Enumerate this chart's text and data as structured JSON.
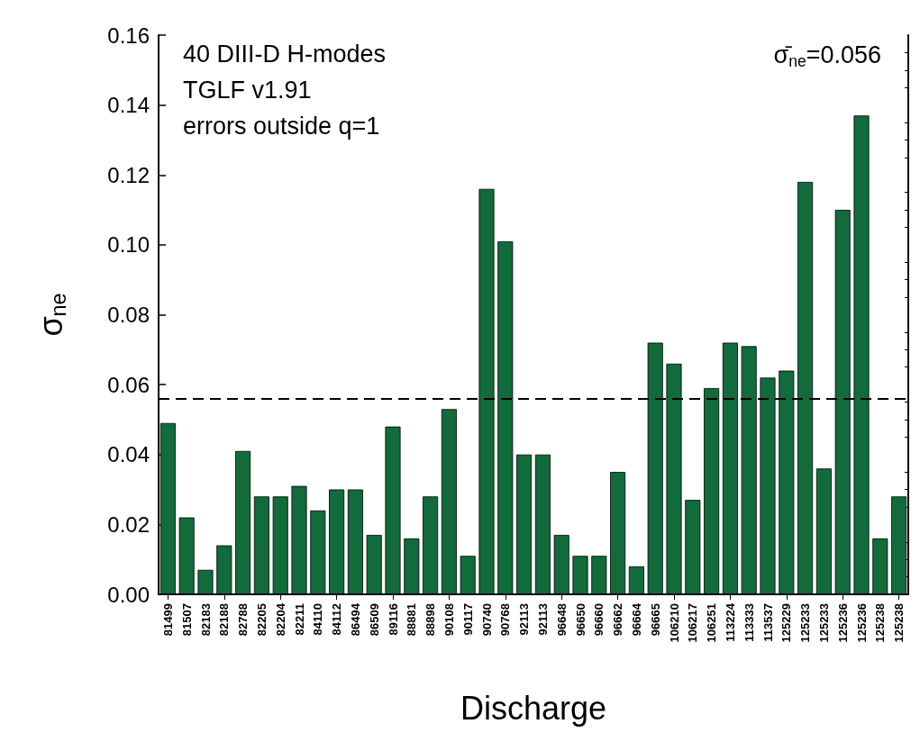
{
  "chart_data": {
    "type": "bar",
    "xlabel": "Discharge",
    "ylabel": "σ$_{ne}$",
    "categories": [
      "81499",
      "81507",
      "82183",
      "82188",
      "82788",
      "82205",
      "82204",
      "82211",
      "84110",
      "84112",
      "86494",
      "86509",
      "89116",
      "88881",
      "88898",
      "90108",
      "90117",
      "90740",
      "90768",
      "92113",
      "92113",
      "96648",
      "96650",
      "96660",
      "96662",
      "96664",
      "96665",
      "106210",
      "106217",
      "106251",
      "113224",
      "113333",
      "113537",
      "125229",
      "125233",
      "125233",
      "125236",
      "125236",
      "125238",
      "125238"
    ],
    "values": [
      0.049,
      0.022,
      0.007,
      0.014,
      0.041,
      0.028,
      0.028,
      0.031,
      0.024,
      0.03,
      0.03,
      0.017,
      0.048,
      0.016,
      0.028,
      0.053,
      0.011,
      0.116,
      0.101,
      0.04,
      0.04,
      0.017,
      0.011,
      0.011,
      0.035,
      0.008,
      0.072,
      0.066,
      0.027,
      0.059,
      0.072,
      0.071,
      0.062,
      0.064,
      0.118,
      0.036,
      0.11,
      0.137,
      0.016,
      0.028
    ],
    "color": "#116b3a",
    "ylim": [
      0,
      0.16
    ],
    "yticks": [
      {
        "value": 0,
        "label": "0.00"
      },
      {
        "value": 0.02,
        "label": "0.02"
      },
      {
        "value": 0.04,
        "label": "0.04"
      },
      {
        "value": 0.06,
        "label": "0.06"
      },
      {
        "value": 0.08,
        "label": "0.08"
      },
      {
        "value": 0.1,
        "label": "0.10"
      },
      {
        "value": 0.12,
        "label": "0.12"
      },
      {
        "value": 0.14,
        "label": "0.14"
      },
      {
        "value": 0.16,
        "label": "0.16"
      }
    ],
    "ref_lines": [
      {
        "axis": "y",
        "value": 0.056,
        "color": "#000000",
        "line_style": "dashed"
      }
    ],
    "annotations": [
      "40 DIII-D H-modes",
      "TGLF v1.91",
      "errors outside q=1",
      "σ̄$_{ne}$=0.056"
    ],
    "grid": false
  }
}
